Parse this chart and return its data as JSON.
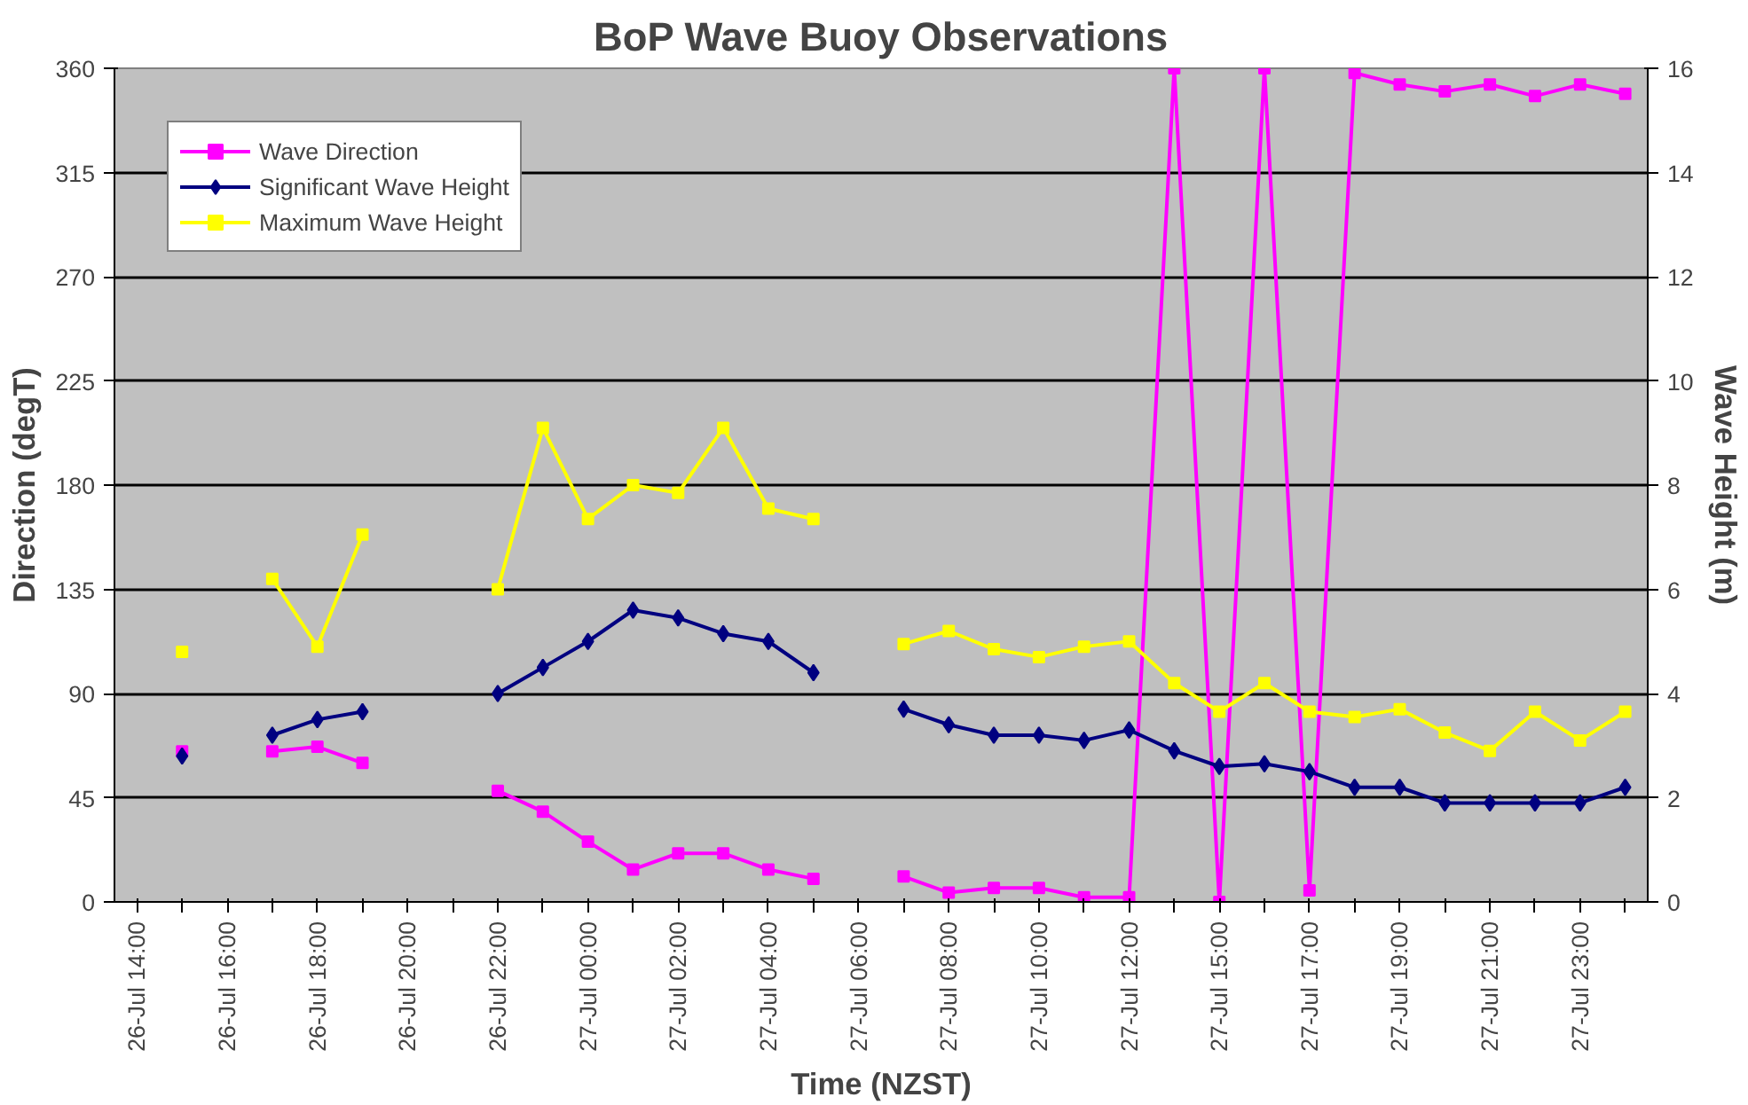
{
  "chart_data": {
    "type": "line",
    "title": "BoP Wave Buoy Observations",
    "xlabel": "Time (NZST)",
    "ylabel": "Direction (degT)",
    "y2label": "Wave Height (m)",
    "categories": [
      "26-Jul 14:00",
      null,
      "26-Jul 16:00",
      null,
      "26-Jul 18:00",
      null,
      "26-Jul 20:00",
      null,
      "26-Jul 22:00",
      null,
      "27-Jul 00:00",
      null,
      "27-Jul 02:00",
      null,
      "27-Jul 04:00",
      null,
      "27-Jul 06:00",
      null,
      "27-Jul 08:00",
      null,
      "27-Jul 10:00",
      null,
      "27-Jul 12:00",
      null,
      "27-Jul 15:00",
      null,
      "27-Jul 17:00",
      null,
      "27-Jul 19:00",
      null,
      "27-Jul 21:00",
      null,
      "27-Jul 23:00",
      null
    ],
    "series": [
      {
        "name": "Wave Direction",
        "color": "#ff00ff",
        "marker": "square",
        "values": [
          null,
          65,
          null,
          65,
          67,
          60,
          null,
          null,
          48,
          39,
          26,
          14,
          21,
          21,
          14,
          10,
          null,
          11,
          4,
          6,
          6,
          2,
          2,
          360,
          0,
          360,
          5,
          358,
          353,
          350,
          353,
          348,
          353,
          349
        ]
      },
      {
        "name": "Significant Wave Height",
        "color": "#000080",
        "marker": "diamond",
        "axis": "y2",
        "values": [
          null,
          2.8,
          null,
          3.2,
          3.5,
          3.65,
          null,
          null,
          4.0,
          4.5,
          5.0,
          5.6,
          5.45,
          5.15,
          5.0,
          4.4,
          null,
          3.7,
          3.4,
          3.2,
          3.2,
          3.1,
          3.3,
          2.9,
          2.6,
          2.65,
          2.5,
          2.2,
          2.2,
          1.9,
          1.9,
          1.9,
          1.9,
          2.2
        ]
      },
      {
        "name": "Maximum Wave Height",
        "color": "#ffff00",
        "marker": "square",
        "axis": "y2",
        "values": [
          null,
          4.8,
          null,
          6.2,
          4.9,
          7.05,
          null,
          null,
          6.0,
          9.1,
          7.35,
          8.0,
          7.85,
          9.1,
          7.55,
          7.35,
          null,
          4.95,
          5.2,
          4.85,
          4.7,
          4.9,
          5.0,
          4.2,
          3.65,
          4.2,
          3.65,
          3.55,
          3.7,
          3.25,
          2.9,
          3.65,
          3.1,
          3.65
        ]
      }
    ],
    "ylim": [
      0,
      360
    ],
    "yticks": [
      0,
      45,
      90,
      135,
      180,
      225,
      270,
      315,
      360
    ],
    "y2lim": [
      0,
      16
    ],
    "y2ticks": [
      0,
      2,
      4,
      6,
      8,
      10,
      12,
      14,
      16
    ],
    "grid": "y",
    "legend": "top left",
    "line_style": "solid"
  }
}
